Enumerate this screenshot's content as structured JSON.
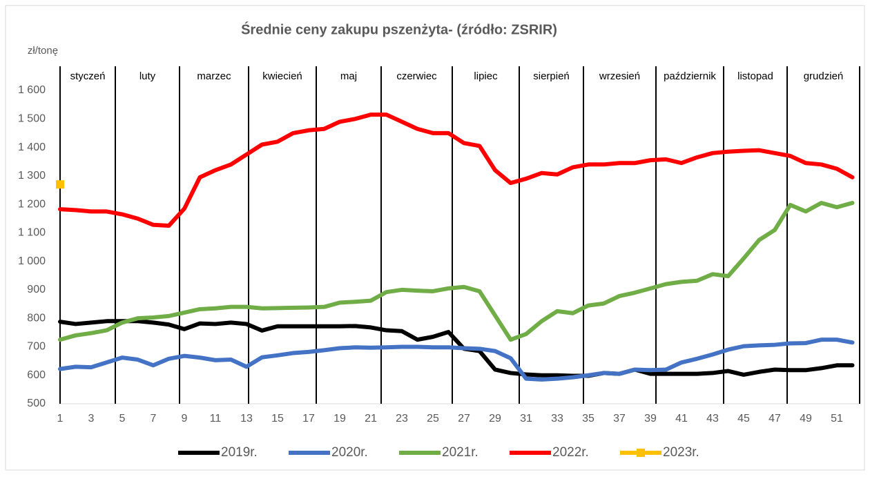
{
  "chart_data": {
    "type": "line",
    "title": "Średnie ceny zakupu pszenżyta- (źródło: ZSRIR)",
    "y_label": "zł/tonę",
    "months": [
      "styczeń",
      "luty",
      "marzec",
      "kwiecień",
      "maj",
      "czerwiec",
      "lipiec",
      "sierpień",
      "wrzesień",
      "październik",
      "listopad",
      "grudzień"
    ],
    "categories": [
      1,
      null,
      3,
      null,
      5,
      null,
      7,
      null,
      9,
      null,
      11,
      null,
      13,
      null,
      15,
      null,
      17,
      null,
      19,
      null,
      21,
      null,
      23,
      null,
      25,
      null,
      27,
      null,
      29,
      null,
      31,
      null,
      33,
      null,
      35,
      null,
      37,
      null,
      39,
      null,
      41,
      null,
      43,
      null,
      45,
      null,
      47,
      null,
      49,
      null,
      51,
      null
    ],
    "ylim": [
      500,
      1600
    ],
    "yticks": [
      500,
      600,
      700,
      800,
      900,
      {
        "value": 1000,
        "label": "1 000"
      },
      {
        "value": 1100,
        "label": "1 100"
      },
      {
        "value": 1200,
        "label": "1 200"
      },
      {
        "value": 1300,
        "label": "1 300"
      },
      {
        "value": 1400,
        "label": "1 400"
      },
      {
        "value": 1500,
        "label": "1 500"
      },
      {
        "value": 1600,
        "label": "1 600"
      }
    ],
    "grid": false,
    "legend": "bottom",
    "series": [
      {
        "name": "2019r.",
        "color": "#000000",
        "values": [
          788,
          780,
          785,
          790,
          790,
          790,
          785,
          778,
          762,
          782,
          780,
          785,
          780,
          757,
          772,
          772,
          772,
          772,
          772,
          773,
          768,
          758,
          755,
          725,
          735,
          752,
          693,
          685,
          620,
          608,
          603,
          600,
          600,
          598,
          598,
          608,
          605,
          620,
          605,
          605,
          605,
          605,
          608,
          615,
          602,
          612,
          620,
          618,
          618,
          625,
          635,
          635
        ]
      },
      {
        "name": "2020r.",
        "color": "#4472c4",
        "values": [
          622,
          630,
          628,
          645,
          662,
          655,
          635,
          658,
          668,
          662,
          653,
          655,
          630,
          663,
          670,
          678,
          682,
          688,
          695,
          698,
          697,
          698,
          700,
          700,
          698,
          698,
          695,
          693,
          685,
          660,
          588,
          585,
          588,
          593,
          600,
          608,
          605,
          620,
          618,
          620,
          645,
          658,
          673,
          690,
          702,
          705,
          707,
          712,
          713,
          725,
          725,
          715
        ]
      },
      {
        "name": "2021r.",
        "color": "#70ad47",
        "values": [
          725,
          740,
          748,
          758,
          785,
          800,
          803,
          808,
          820,
          832,
          835,
          840,
          840,
          835,
          836,
          837,
          838,
          840,
          855,
          858,
          862,
          892,
          900,
          897,
          895,
          905,
          910,
          895,
          810,
          725,
          745,
          790,
          825,
          818,
          845,
          852,
          878,
          890,
          905,
          920,
          928,
          932,
          955,
          948,
          1010,
          1075,
          1110,
          1198,
          1175,
          1205,
          1190,
          1205
        ]
      },
      {
        "name": "2022r.",
        "color": "#ff0000",
        "values": [
          1183,
          1180,
          1175,
          1175,
          1165,
          1150,
          1128,
          1125,
          1185,
          1295,
          1320,
          1340,
          1375,
          1410,
          1420,
          1450,
          1460,
          1465,
          1490,
          1500,
          1515,
          1515,
          1490,
          1465,
          1450,
          1450,
          1415,
          1405,
          1320,
          1275,
          1290,
          1310,
          1305,
          1330,
          1340,
          1340,
          1345,
          1345,
          1355,
          1358,
          1345,
          1365,
          1380,
          1385,
          1388,
          1390,
          1380,
          1370,
          1345,
          1340,
          1325,
          1295
        ]
      },
      {
        "name": "2023r.",
        "color": "#ffc000",
        "marker": "square",
        "values": [
          1270,
          null,
          null,
          null,
          null,
          null,
          null,
          null,
          null,
          null,
          null,
          null,
          null,
          null,
          null,
          null,
          null,
          null,
          null,
          null,
          null,
          null,
          null,
          null,
          null,
          null,
          null,
          null,
          null,
          null,
          null,
          null,
          null,
          null,
          null,
          null,
          null,
          null,
          null,
          null,
          null,
          null,
          null,
          null,
          null,
          null,
          null,
          null,
          null,
          null,
          null,
          null
        ]
      }
    ]
  }
}
